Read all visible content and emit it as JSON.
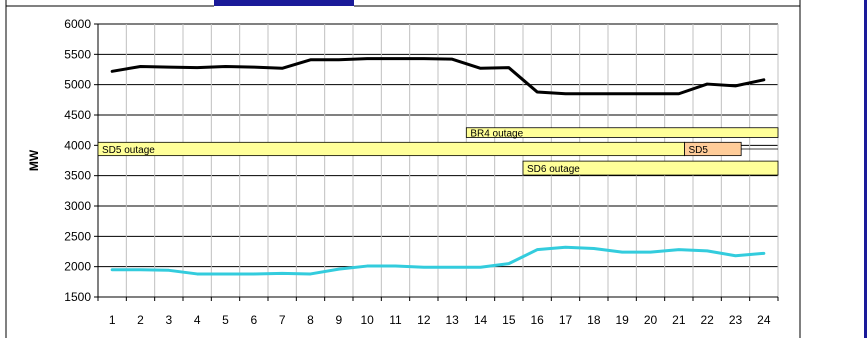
{
  "chart_data": {
    "type": "line",
    "title": "",
    "xlabel": "",
    "ylabel": "MW",
    "x": [
      1,
      2,
      3,
      4,
      5,
      6,
      7,
      8,
      9,
      10,
      11,
      12,
      13,
      14,
      15,
      16,
      17,
      18,
      19,
      20,
      21,
      22,
      23,
      24
    ],
    "ylim": [
      1500,
      6000
    ],
    "yticks": [
      1500,
      2000,
      2500,
      3000,
      3500,
      4000,
      4500,
      5000,
      5500,
      6000
    ],
    "grid": true,
    "series": [
      {
        "color": "#000000",
        "values": [
          5220,
          5300,
          5290,
          5280,
          5300,
          5290,
          5270,
          5410,
          5410,
          5430,
          5430,
          5430,
          5420,
          5270,
          5280,
          4880,
          4850,
          4850,
          4850,
          4850,
          4850,
          5010,
          4980,
          5080
        ]
      },
      {
        "color": "#33ccdd",
        "values": [
          1950,
          1950,
          1940,
          1880,
          1880,
          1880,
          1890,
          1880,
          1960,
          2010,
          2010,
          1990,
          1990,
          1990,
          2050,
          2280,
          2320,
          2300,
          2240,
          2240,
          2280,
          2260,
          2180,
          2220
        ]
      }
    ],
    "annotations": [
      {
        "label": "BR4 outage",
        "x_start": 13.5,
        "x_end": 24.5,
        "y_low": 4130,
        "y_high": 4290,
        "color": "#ffff99"
      },
      {
        "label": "SD5 outage",
        "x_start": 0.5,
        "x_end": 21.2,
        "y_low": 3830,
        "y_high": 4050,
        "color": "#ffff99"
      },
      {
        "label": "SD5",
        "x_start": 21.2,
        "x_end": 23.2,
        "y_low": 3830,
        "y_high": 4050,
        "color": "#ffcc99"
      },
      {
        "label": "SD6 outage",
        "x_start": 15.5,
        "x_end": 24.5,
        "y_low": 3510,
        "y_high": 3740,
        "color": "#ffff99"
      }
    ]
  }
}
